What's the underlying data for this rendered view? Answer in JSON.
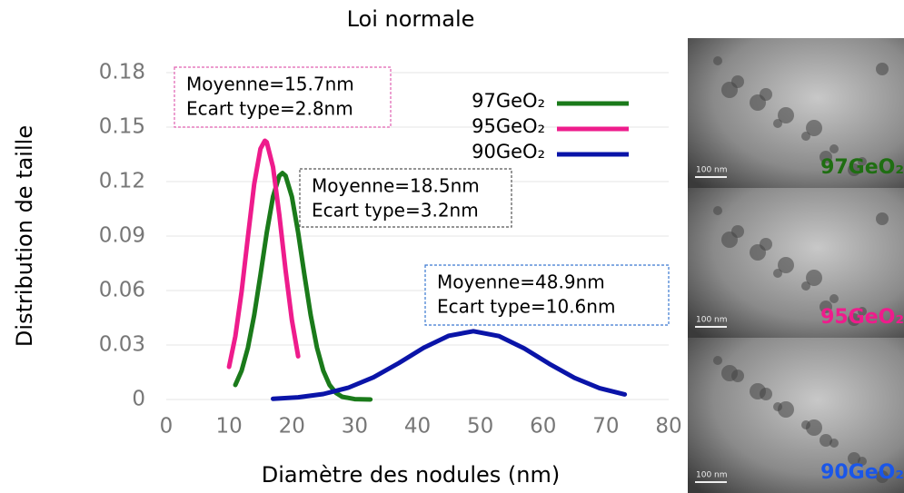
{
  "chart_data": {
    "type": "line",
    "title": "Loi normale",
    "x_label": "Diamètre des nodules (nm)",
    "y_label": "Distribution de taille",
    "xlim": [
      0,
      80
    ],
    "xticks": [
      0,
      10,
      20,
      30,
      40,
      50,
      60,
      70,
      80
    ],
    "ylim": [
      0,
      0.18
    ],
    "yticks": [
      0,
      0.03,
      0.06,
      0.09,
      0.12,
      0.15,
      0.18
    ],
    "grid": true,
    "legend": "upper right",
    "series": [
      {
        "name": "97GeO₂",
        "color": "#1a7a1a",
        "x": [
          11,
          12,
          13,
          14,
          15,
          16,
          17,
          18,
          18.5,
          19,
          20,
          21,
          22,
          23,
          24,
          25,
          26,
          27,
          28,
          30,
          32.5
        ],
        "values": [
          0.008,
          0.0159,
          0.0285,
          0.0464,
          0.0686,
          0.0919,
          0.1117,
          0.1232,
          0.1247,
          0.1232,
          0.1117,
          0.0919,
          0.0686,
          0.0464,
          0.0285,
          0.0159,
          0.008,
          0.0037,
          0.0015,
          0.0002,
          0
        ]
      },
      {
        "name": "95GeO₂",
        "color": "#ee1c8c",
        "x": [
          10,
          11,
          12,
          13,
          14,
          15,
          15.7,
          16,
          17,
          18,
          19,
          20,
          21
        ],
        "values": [
          0.018,
          0.0348,
          0.0595,
          0.0895,
          0.1186,
          0.1381,
          0.1425,
          0.1417,
          0.128,
          0.1017,
          0.0711,
          0.0438,
          0.0238
        ]
      },
      {
        "name": "90GeO₂",
        "color": "#0a14a8",
        "x": [
          17,
          21,
          25,
          29,
          33,
          37,
          41,
          45,
          48.9,
          53,
          57,
          61,
          65,
          69,
          73
        ],
        "values": [
          0.0004,
          0.0012,
          0.003,
          0.0065,
          0.0122,
          0.02,
          0.0285,
          0.0351,
          0.0376,
          0.0349,
          0.0281,
          0.0196,
          0.0119,
          0.0062,
          0.0028
        ]
      }
    ],
    "annotations": [
      {
        "lines": [
          "Moyenne=15.7nm",
          "Ecart type=2.8nm"
        ],
        "color": "#e060b0"
      },
      {
        "lines": [
          "Moyenne=18.5nm",
          "Ecart type=3.2nm"
        ],
        "color": "#555555"
      },
      {
        "lines": [
          "Moyenne=48.9nm",
          "Ecart type=10.6nm"
        ],
        "color": "#3a78d0"
      }
    ]
  },
  "images": [
    {
      "label": "97GeO₂",
      "color": "#1f6e12",
      "scale": "100 nm"
    },
    {
      "label": "95GeO₂",
      "color": "#ee1c8c",
      "scale": "100 nm"
    },
    {
      "label": "90GeO₂",
      "color": "#1a56e8",
      "scale": "100 nm"
    }
  ]
}
